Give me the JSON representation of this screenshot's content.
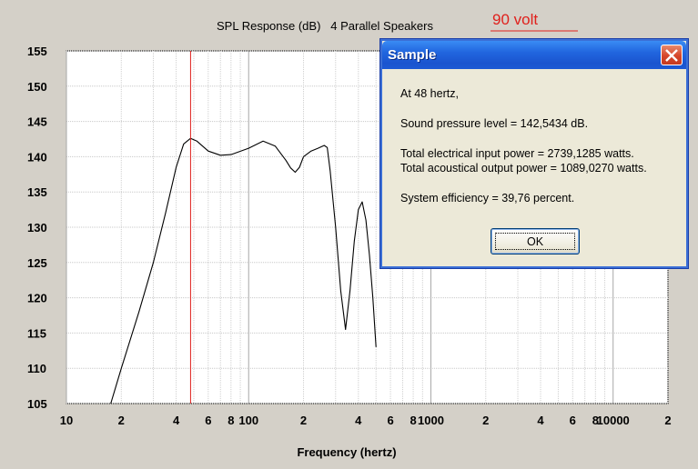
{
  "chart_data": {
    "type": "line",
    "title": "SPL Response (dB)   4 Parallel Speakers",
    "annotation": "90 volt",
    "xlabel": "Frequency (hertz)",
    "ylabel": "",
    "xscale": "log",
    "xlim": [
      10,
      20000
    ],
    "ylim": [
      105,
      155
    ],
    "yticks": [
      "155",
      "150",
      "145",
      "140",
      "135",
      "130",
      "125",
      "120",
      "115",
      "110",
      "105"
    ],
    "xticks": [
      {
        "value": 10,
        "label": "10"
      },
      {
        "value": 20,
        "label": "2"
      },
      {
        "value": 40,
        "label": "4"
      },
      {
        "value": 60,
        "label": "6"
      },
      {
        "value": 80,
        "label": "8"
      },
      {
        "value": 100,
        "label": "100"
      },
      {
        "value": 200,
        "label": "2"
      },
      {
        "value": 400,
        "label": "4"
      },
      {
        "value": 600,
        "label": "6"
      },
      {
        "value": 800,
        "label": "8"
      },
      {
        "value": 1000,
        "label": "1000"
      },
      {
        "value": 2000,
        "label": "2"
      },
      {
        "value": 4000,
        "label": "4"
      },
      {
        "value": 6000,
        "label": "6"
      },
      {
        "value": 8000,
        "label": "8"
      },
      {
        "value": 10000,
        "label": "10000"
      },
      {
        "value": 20000,
        "label": "2"
      }
    ],
    "grid": true,
    "marker_frequency": 48,
    "series": [
      {
        "color": "#000000",
        "x": [
          17.5,
          20,
          25,
          30,
          35,
          40,
          44,
          48,
          52,
          60,
          70,
          80,
          100,
          120,
          140,
          160,
          170,
          180,
          190,
          200,
          220,
          240,
          260,
          270,
          280,
          300,
          320,
          340,
          360,
          380,
          400,
          420,
          440,
          460,
          480,
          500
        ],
        "y": [
          105,
          110,
          118,
          125,
          132,
          138.5,
          141.8,
          142.6,
          142.2,
          140.8,
          140.2,
          140.3,
          141.2,
          142.2,
          141.5,
          139.5,
          138.4,
          137.8,
          138.5,
          140,
          140.8,
          141.2,
          141.6,
          141.3,
          138,
          130,
          121,
          115.5,
          121,
          128,
          132.5,
          133.6,
          131,
          126,
          120,
          113
        ]
      }
    ]
  },
  "dialog": {
    "title": "Sample",
    "line1": "At 48 hertz,",
    "line2": "Sound pressure level = 142,5434 dB.",
    "line3": "Total electrical input power = 2739,1285 watts.",
    "line4": "Total acoustical output power = 1089,0270 watts.",
    "line5": "System efficiency = 39,76 percent.",
    "ok_label": "OK"
  }
}
